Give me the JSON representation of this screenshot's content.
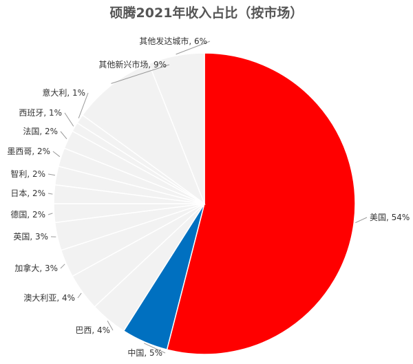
{
  "chart_data": {
    "type": "pie",
    "title": "硕腾2021年收入占比（按市场）",
    "slices": [
      {
        "name": "美国",
        "value": 54,
        "label": "美国, 54%",
        "color": "#ff0000"
      },
      {
        "name": "中国",
        "value": 5,
        "label": "中国, 5%",
        "color": "#0070c0"
      },
      {
        "name": "巴西",
        "value": 4,
        "label": "巴西, 4%",
        "color": "#f2f2f2"
      },
      {
        "name": "澳大利亚",
        "value": 4,
        "label": "澳大利亚, 4%",
        "color": "#f2f2f2"
      },
      {
        "name": "加拿大",
        "value": 3,
        "label": "加拿大, 3%",
        "color": "#f2f2f2"
      },
      {
        "name": "英国",
        "value": 3,
        "label": "英国, 3%",
        "color": "#f2f2f2"
      },
      {
        "name": "德国",
        "value": 2,
        "label": "德国, 2%",
        "color": "#f2f2f2"
      },
      {
        "name": "日本",
        "value": 2,
        "label": "日本, 2%",
        "color": "#f2f2f2"
      },
      {
        "name": "智利",
        "value": 2,
        "label": "智利, 2%",
        "color": "#f2f2f2"
      },
      {
        "name": "墨西哥",
        "value": 2,
        "label": "墨西哥, 2%",
        "color": "#f2f2f2"
      },
      {
        "name": "法国",
        "value": 2,
        "label": "法国, 2%",
        "color": "#f2f2f2"
      },
      {
        "name": "西班牙",
        "value": 1,
        "label": "西班牙, 1%",
        "color": "#f2f2f2"
      },
      {
        "name": "意大利",
        "value": 1,
        "label": "意大利, 1%",
        "color": "#f2f2f2"
      },
      {
        "name": "其他新兴市场",
        "value": 9,
        "label": "其他新兴市场, 9%",
        "color": "#f2f2f2"
      },
      {
        "name": "其他发达城市",
        "value": 6,
        "label": "其他发达城市, 6%",
        "color": "#f2f2f2"
      }
    ]
  }
}
